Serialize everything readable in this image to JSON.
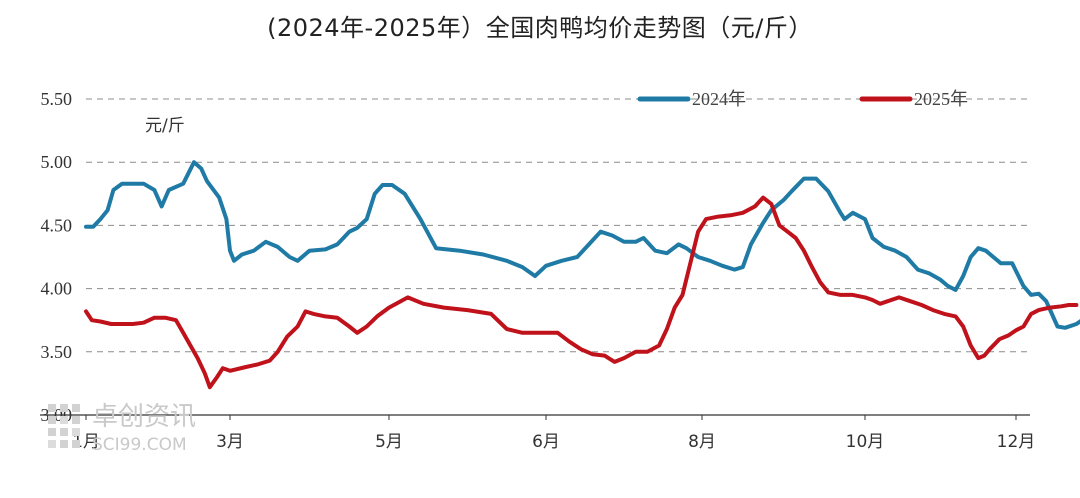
{
  "title": "(2024年-2025年）全国肉鸭均价走势图（元/斤）",
  "unit_label": "元/斤",
  "watermark": {
    "name": "卓创资讯",
    "site": "SCI99.COM"
  },
  "colors": {
    "series_2024": "#1f7ba5",
    "series_2025": "#c0121b",
    "grid": "#8c8c8c",
    "axis": "#333333"
  },
  "chart_data": {
    "type": "line",
    "title": "(2024年-2025年）全国肉鸭均价走势图（元/斤）",
    "ylabel": "元/斤",
    "ylim": [
      3.0,
      5.5
    ],
    "yticks": [
      3.0,
      3.5,
      4.0,
      4.5,
      5.0,
      5.5
    ],
    "ytick_labels": [
      "3.00",
      "3.50",
      "4.00",
      "4.50",
      "5.00",
      "5.50"
    ],
    "xlim": [
      1.0,
      12.0
    ],
    "xticks": [
      1,
      3,
      5,
      6,
      8,
      10,
      12
    ],
    "xtick_labels": [
      "1月",
      "3月",
      "5月",
      "6月",
      "8月",
      "10月",
      "12月"
    ],
    "grid": "horizontal dashed",
    "legend": "top-right",
    "series": [
      {
        "name": "2024年",
        "points": [
          [
            1.0,
            4.49
          ],
          [
            1.1,
            4.49
          ],
          [
            1.2,
            4.55
          ],
          [
            1.3,
            4.62
          ],
          [
            1.38,
            4.78
          ],
          [
            1.5,
            4.83
          ],
          [
            1.65,
            4.83
          ],
          [
            1.8,
            4.83
          ],
          [
            1.95,
            4.78
          ],
          [
            2.05,
            4.65
          ],
          [
            2.15,
            4.78
          ],
          [
            2.35,
            4.83
          ],
          [
            2.5,
            5.0
          ],
          [
            2.6,
            4.95
          ],
          [
            2.68,
            4.85
          ],
          [
            2.85,
            4.72
          ],
          [
            2.95,
            4.55
          ],
          [
            3.0,
            4.3
          ],
          [
            3.05,
            4.22
          ],
          [
            3.15,
            4.27
          ],
          [
            3.3,
            4.3
          ],
          [
            3.45,
            4.37
          ],
          [
            3.6,
            4.33
          ],
          [
            3.75,
            4.25
          ],
          [
            3.85,
            4.22
          ],
          [
            4.0,
            4.3
          ],
          [
            4.2,
            4.31
          ],
          [
            4.35,
            4.35
          ],
          [
            4.5,
            4.45
          ],
          [
            4.6,
            4.48
          ],
          [
            4.72,
            4.55
          ],
          [
            4.82,
            4.75
          ],
          [
            4.92,
            4.82
          ],
          [
            5.02,
            4.82
          ],
          [
            5.1,
            4.75
          ],
          [
            5.2,
            4.55
          ],
          [
            5.3,
            4.32
          ],
          [
            5.45,
            4.3
          ],
          [
            5.6,
            4.27
          ],
          [
            5.75,
            4.22
          ],
          [
            5.85,
            4.17
          ],
          [
            5.93,
            4.1
          ],
          [
            6.0,
            4.18
          ],
          [
            6.2,
            4.22
          ],
          [
            6.4,
            4.25
          ],
          [
            6.55,
            4.35
          ],
          [
            6.7,
            4.45
          ],
          [
            6.85,
            4.42
          ],
          [
            7.0,
            4.37
          ],
          [
            7.15,
            4.37
          ],
          [
            7.25,
            4.4
          ],
          [
            7.4,
            4.3
          ],
          [
            7.55,
            4.28
          ],
          [
            7.7,
            4.35
          ],
          [
            7.8,
            4.32
          ],
          [
            7.95,
            4.25
          ],
          [
            8.1,
            4.22
          ],
          [
            8.25,
            4.18
          ],
          [
            8.4,
            4.15
          ],
          [
            8.5,
            4.17
          ],
          [
            8.6,
            4.35
          ],
          [
            8.75,
            4.52
          ],
          [
            8.85,
            4.62
          ],
          [
            9.0,
            4.7
          ],
          [
            9.1,
            4.77
          ],
          [
            9.25,
            4.87
          ],
          [
            9.4,
            4.87
          ],
          [
            9.55,
            4.77
          ],
          [
            9.7,
            4.6
          ],
          [
            9.75,
            4.55
          ],
          [
            9.85,
            4.6
          ],
          [
            10.0,
            4.55
          ],
          [
            10.1,
            4.4
          ],
          [
            10.25,
            4.33
          ],
          [
            10.4,
            4.3
          ],
          [
            10.55,
            4.25
          ],
          [
            10.7,
            4.15
          ],
          [
            10.85,
            4.12
          ],
          [
            11.0,
            4.07
          ],
          [
            11.1,
            4.02
          ],
          [
            11.2,
            3.99
          ],
          [
            11.3,
            4.1
          ],
          [
            11.4,
            4.25
          ],
          [
            11.5,
            4.32
          ],
          [
            11.6,
            4.3
          ],
          [
            11.7,
            4.25
          ],
          [
            11.8,
            4.2
          ],
          [
            11.95,
            4.2
          ],
          [
            12.1,
            4.02
          ],
          [
            12.2,
            3.95
          ],
          [
            12.3,
            3.96
          ],
          [
            12.4,
            3.9
          ],
          [
            12.55,
            3.7
          ],
          [
            12.65,
            3.69
          ],
          [
            12.8,
            3.72
          ],
          [
            12.92,
            3.77
          ],
          [
            13.0,
            3.8
          ],
          [
            13.1,
            3.78
          ]
        ]
      },
      {
        "name": "2025年",
        "points": [
          [
            1.0,
            3.82
          ],
          [
            1.08,
            3.75
          ],
          [
            1.2,
            3.74
          ],
          [
            1.35,
            3.72
          ],
          [
            1.5,
            3.72
          ],
          [
            1.65,
            3.72
          ],
          [
            1.8,
            3.73
          ],
          [
            1.95,
            3.77
          ],
          [
            2.1,
            3.77
          ],
          [
            2.25,
            3.75
          ],
          [
            2.35,
            3.65
          ],
          [
            2.45,
            3.55
          ],
          [
            2.55,
            3.45
          ],
          [
            2.65,
            3.33
          ],
          [
            2.72,
            3.22
          ],
          [
            2.82,
            3.3
          ],
          [
            2.9,
            3.37
          ],
          [
            3.0,
            3.35
          ],
          [
            3.2,
            3.38
          ],
          [
            3.35,
            3.4
          ],
          [
            3.5,
            3.43
          ],
          [
            3.6,
            3.5
          ],
          [
            3.72,
            3.62
          ],
          [
            3.85,
            3.7
          ],
          [
            3.95,
            3.82
          ],
          [
            4.05,
            3.8
          ],
          [
            4.2,
            3.78
          ],
          [
            4.35,
            3.77
          ],
          [
            4.5,
            3.7
          ],
          [
            4.6,
            3.65
          ],
          [
            4.72,
            3.7
          ],
          [
            4.85,
            3.78
          ],
          [
            5.0,
            3.85
          ],
          [
            5.12,
            3.93
          ],
          [
            5.22,
            3.88
          ],
          [
            5.35,
            3.85
          ],
          [
            5.5,
            3.83
          ],
          [
            5.65,
            3.8
          ],
          [
            5.75,
            3.68
          ],
          [
            5.85,
            3.65
          ],
          [
            6.0,
            3.65
          ],
          [
            6.15,
            3.65
          ],
          [
            6.3,
            3.58
          ],
          [
            6.45,
            3.52
          ],
          [
            6.6,
            3.48
          ],
          [
            6.75,
            3.47
          ],
          [
            6.88,
            3.42
          ],
          [
            7.0,
            3.45
          ],
          [
            7.15,
            3.5
          ],
          [
            7.3,
            3.5
          ],
          [
            7.45,
            3.55
          ],
          [
            7.55,
            3.68
          ],
          [
            7.65,
            3.85
          ],
          [
            7.75,
            3.95
          ],
          [
            7.85,
            4.2
          ],
          [
            7.95,
            4.45
          ],
          [
            8.05,
            4.55
          ],
          [
            8.2,
            4.57
          ],
          [
            8.35,
            4.58
          ],
          [
            8.5,
            4.6
          ],
          [
            8.65,
            4.65
          ],
          [
            8.75,
            4.72
          ],
          [
            8.85,
            4.67
          ],
          [
            8.95,
            4.5
          ],
          [
            9.05,
            4.45
          ],
          [
            9.15,
            4.4
          ],
          [
            9.25,
            4.3
          ],
          [
            9.35,
            4.17
          ],
          [
            9.45,
            4.05
          ],
          [
            9.55,
            3.97
          ],
          [
            9.7,
            3.95
          ],
          [
            9.85,
            3.95
          ],
          [
            10.0,
            3.93
          ],
          [
            10.1,
            3.91
          ],
          [
            10.2,
            3.88
          ],
          [
            10.3,
            3.9
          ],
          [
            10.45,
            3.93
          ],
          [
            10.6,
            3.9
          ],
          [
            10.75,
            3.87
          ],
          [
            10.9,
            3.83
          ],
          [
            11.05,
            3.8
          ],
          [
            11.2,
            3.78
          ],
          [
            11.3,
            3.7
          ],
          [
            11.4,
            3.55
          ],
          [
            11.5,
            3.45
          ],
          [
            11.58,
            3.47
          ],
          [
            11.65,
            3.52
          ],
          [
            11.78,
            3.6
          ],
          [
            11.9,
            3.63
          ],
          [
            12.0,
            3.67
          ],
          [
            12.1,
            3.7
          ],
          [
            12.2,
            3.8
          ],
          [
            12.3,
            3.83
          ],
          [
            12.45,
            3.85
          ],
          [
            12.6,
            3.86
          ],
          [
            12.7,
            3.87
          ],
          [
            12.8,
            3.87
          ]
        ]
      }
    ]
  }
}
